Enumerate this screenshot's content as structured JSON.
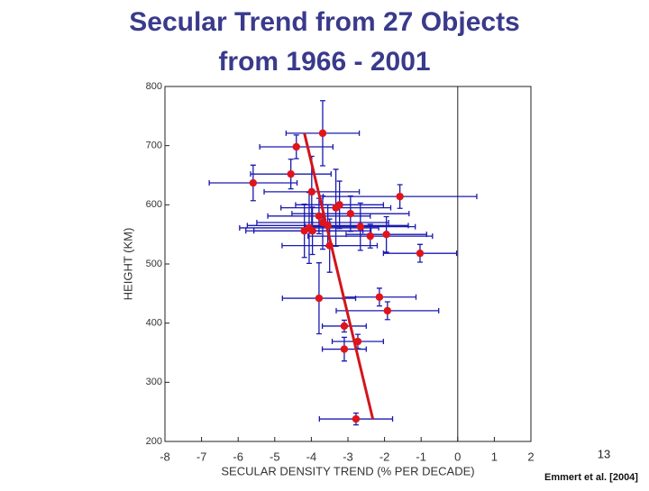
{
  "chart_data": {
    "type": "scatter",
    "title": [
      "Secular Trend from 27 Objects",
      "from 1966 - 2001"
    ],
    "x_label": "SECULAR DENSITY TREND (% PER DECADE)",
    "y_label": "HEIGHT (KM)",
    "xlim": [
      -8,
      2
    ],
    "ylim": [
      200,
      800
    ],
    "xticks": [
      -8,
      -7,
      -6,
      -5,
      -4,
      -3,
      -2,
      -1,
      0,
      1,
      2
    ],
    "yticks": [
      200,
      300,
      400,
      500,
      600,
      700,
      800
    ],
    "x": [
      -3.69,
      -4.41,
      -4.56,
      -5.59,
      -3.99,
      -1.58,
      -3.33,
      -3.79,
      -2.93,
      -4.06,
      -4.19,
      -2.66,
      -3.69,
      -2.39,
      -1.95,
      -3.5,
      -1.03,
      -3.79,
      -2.14,
      -1.92,
      -3.1,
      -2.73,
      -3.1,
      -2.78,
      -3.97,
      -3.23,
      -3.55
    ],
    "y": [
      721,
      698,
      652,
      637,
      622,
      614,
      595,
      581,
      585,
      561,
      556,
      563,
      570,
      547,
      550,
      531,
      518,
      442,
      444,
      421,
      395,
      369,
      356,
      238,
      556,
      600,
      565
    ],
    "xerr": [
      1.0,
      1.0,
      1.1,
      1.2,
      1.3,
      2.1,
      1.5,
      1.4,
      1.6,
      1.9,
      1.6,
      1.5,
      1.8,
      1.7,
      1.1,
      1.3,
      1.0,
      1.0,
      1.0,
      1.4,
      0.6,
      0.7,
      0.6,
      1.0,
      1.6,
      1.2,
      2.2
    ],
    "yerr": [
      55,
      20,
      25,
      30,
      60,
      20,
      65,
      30,
      30,
      60,
      45,
      40,
      45,
      20,
      30,
      45,
      15,
      60,
      15,
      15,
      10,
      12,
      20,
      10,
      40,
      40,
      35
    ],
    "color": "#e0141b",
    "errcolor": "#1a1ab0",
    "fit": {
      "x": [
        -4.19,
        -2.32
      ],
      "y": [
        721,
        238
      ],
      "color": "#d4141b"
    },
    "zero_line": 0,
    "page_number": "13",
    "citation": "Emmert et al. [2004]"
  }
}
